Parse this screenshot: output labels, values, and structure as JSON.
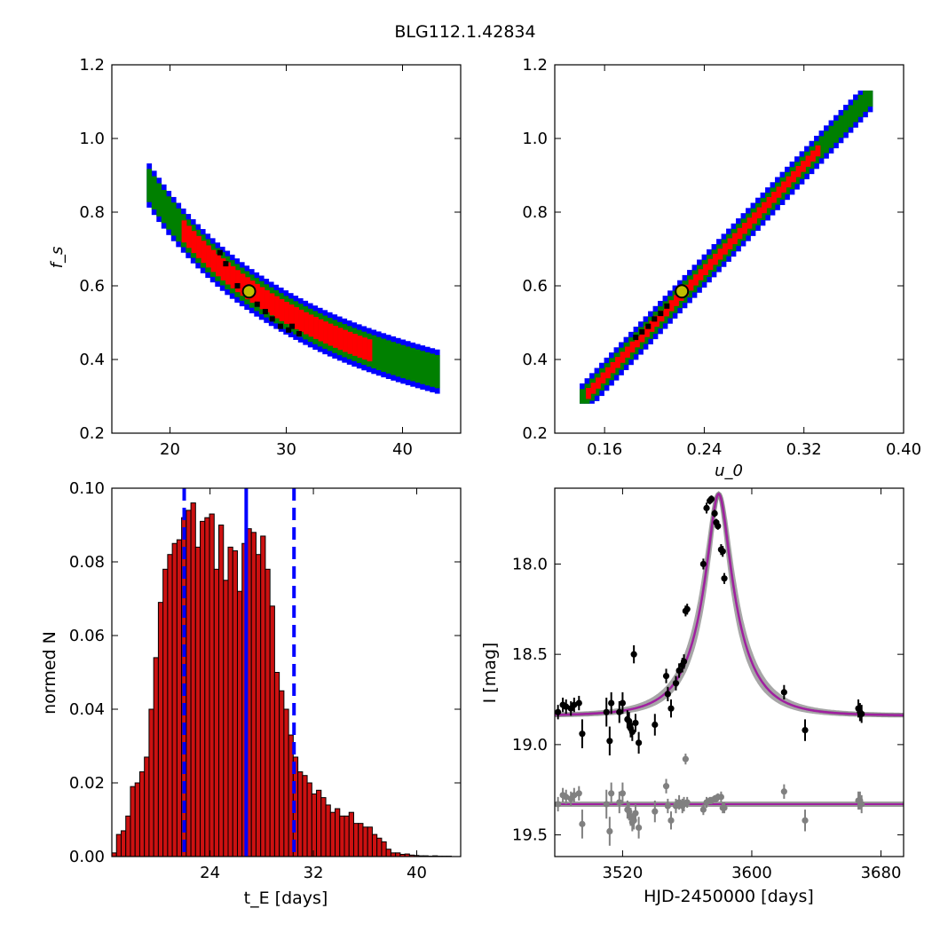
{
  "figure": {
    "title": "BLG112.1.42834"
  },
  "colors": {
    "sigma1": "#ff0000",
    "sigma2": "#008000",
    "sigma3": "#0000ff",
    "best_grid": "#000000",
    "marker_fill": "#bfbf00",
    "model": "#a020a0",
    "model_shade": "#808080",
    "hist_bar": "#cc1111",
    "median_line": "#0000ff",
    "data_main": "#000000",
    "data_resid": "#808080"
  },
  "chart_data": [
    {
      "id": "tE_fs",
      "type": "heatmap",
      "xlabel": "",
      "ylabel": "f_s",
      "xlim": [
        15,
        45
      ],
      "ylim": [
        0.2,
        1.2
      ],
      "xticks": [
        "20",
        "30",
        "40"
      ],
      "yticks": [
        "0.2",
        "0.4",
        "0.6",
        "0.8",
        "1.0",
        "1.2"
      ],
      "relation": {
        "form": "fs = 15.7 / tE",
        "x_range": [
          18,
          43
        ]
      },
      "bands": {
        "sigma1_halfwidth_fs": 0.03,
        "sigma1_x_range": [
          21,
          37
        ],
        "sigma2_halfwidth_fs": 0.045,
        "sigma3_halfwidth_fs": 0.06
      },
      "best_cells": [
        [
          24.3,
          0.69
        ],
        [
          24.8,
          0.66
        ],
        [
          25.8,
          0.6
        ],
        [
          27.5,
          0.55
        ],
        [
          28.2,
          0.53
        ],
        [
          28.8,
          0.51
        ],
        [
          29.5,
          0.49
        ],
        [
          30.2,
          0.48
        ],
        [
          30.5,
          0.49
        ],
        [
          31.1,
          0.47
        ]
      ],
      "best_fit": {
        "x": 26.8,
        "y": 0.585
      }
    },
    {
      "id": "u0_fs",
      "type": "heatmap",
      "xlabel": "u_0",
      "ylabel": "",
      "xlim": [
        0.12,
        0.4
      ],
      "ylim": [
        0.2,
        1.2
      ],
      "xticks": [
        "0.16",
        "0.24",
        "0.32",
        "0.40"
      ],
      "yticks": [
        "0.2",
        "0.4",
        "0.6",
        "0.8",
        "1.0",
        "1.2"
      ],
      "relation": {
        "form": "linear",
        "points": [
          [
            0.14,
            0.29
          ],
          [
            0.375,
            1.13
          ]
        ]
      },
      "bands": {
        "sigma1_halfwidth_fs": 0.015,
        "sigma2_halfwidth_fs": 0.03,
        "sigma3_halfwidth_fs": 0.045
      },
      "best_cells": [
        [
          0.185,
          0.46
        ],
        [
          0.19,
          0.475
        ],
        [
          0.195,
          0.49
        ],
        [
          0.2,
          0.51
        ],
        [
          0.205,
          0.525
        ],
        [
          0.21,
          0.545
        ]
      ],
      "best_fit": {
        "x": 0.222,
        "y": 0.585
      }
    },
    {
      "id": "tE_hist",
      "type": "bar",
      "xlabel": "t_E [days]",
      "ylabel": "normed N",
      "xlim": [
        16.4,
        43.4
      ],
      "ylim": [
        0.0,
        0.1
      ],
      "xticks": [
        "24",
        "32",
        "40"
      ],
      "yticks": [
        "0.00",
        "0.02",
        "0.04",
        "0.06",
        "0.08",
        "0.10"
      ],
      "bin_start": 16.4,
      "bin_width": 0.36,
      "values": [
        0.001,
        0.006,
        0.007,
        0.011,
        0.019,
        0.02,
        0.023,
        0.027,
        0.04,
        0.054,
        0.069,
        0.078,
        0.082,
        0.085,
        0.086,
        0.092,
        0.094,
        0.096,
        0.084,
        0.091,
        0.092,
        0.093,
        0.078,
        0.09,
        0.075,
        0.084,
        0.083,
        0.072,
        0.085,
        0.089,
        0.088,
        0.082,
        0.087,
        0.078,
        0.068,
        0.05,
        0.045,
        0.04,
        0.033,
        0.027,
        0.023,
        0.022,
        0.02,
        0.017,
        0.018,
        0.016,
        0.014,
        0.012,
        0.013,
        0.011,
        0.011,
        0.012,
        0.009,
        0.009,
        0.008,
        0.008,
        0.006,
        0.005,
        0.004,
        0.002,
        0.001,
        0.001,
        0.0006,
        0.0007,
        0.0004,
        0.0003,
        0.0002,
        0.0002,
        0.0001,
        0.0002,
        0.0001,
        0.0001,
        0.0001,
        0.0
      ],
      "median": 26.8,
      "interval": [
        22.0,
        30.5
      ]
    },
    {
      "id": "lightcurve",
      "type": "scatter",
      "xlabel": "HJD-2450000 [days]",
      "ylabel": "I [mag]",
      "xlim": [
        3478,
        3694
      ],
      "ylim": [
        19.62,
        17.58
      ],
      "xticks": [
        "3520",
        "3600",
        "3680"
      ],
      "yticks": [
        "18.0",
        "18.5",
        "19.0",
        "19.5"
      ],
      "model": {
        "t0": 3579.5,
        "tE": 26.8,
        "u0": 0.222,
        "fs": 0.585,
        "base_mag": 18.84
      },
      "resid_baseline": 19.33,
      "series": [
        {
          "points": [
            [
              3480,
              18.82,
              0.04
            ],
            [
              3483,
              18.78,
              0.04
            ],
            [
              3485,
              18.79,
              0.04
            ],
            [
              3488,
              18.8,
              0.04
            ],
            [
              3490,
              18.78,
              0.04
            ],
            [
              3493,
              18.77,
              0.04
            ],
            [
              3495,
              18.94,
              0.08
            ],
            [
              3510,
              18.82,
              0.08
            ],
            [
              3512,
              18.98,
              0.08
            ],
            [
              3513,
              18.77,
              0.06
            ],
            [
              3518,
              18.82,
              0.06
            ],
            [
              3520,
              18.77,
              0.06
            ],
            [
              3523,
              18.86,
              0.05
            ],
            [
              3524,
              18.87,
              0.05
            ],
            [
              3525,
              18.91,
              0.05
            ],
            [
              3526,
              18.93,
              0.05
            ],
            [
              3527,
              18.5,
              0.05
            ],
            [
              3528,
              18.88,
              0.05
            ],
            [
              3530,
              18.99,
              0.06
            ],
            [
              3540,
              18.89,
              0.06
            ],
            [
              3547,
              18.62,
              0.04
            ],
            [
              3548,
              18.72,
              0.04
            ],
            [
              3550,
              18.8,
              0.05
            ],
            [
              3553,
              18.66,
              0.04
            ],
            [
              3555,
              18.59,
              0.04
            ],
            [
              3557,
              18.56,
              0.04
            ],
            [
              3558,
              18.54,
              0.04
            ],
            [
              3559,
              18.26,
              0.03
            ],
            [
              3560,
              18.25,
              0.03
            ],
            [
              3570,
              18.0,
              0.03
            ],
            [
              3572,
              17.69,
              0.03
            ],
            [
              3574,
              17.65,
              0.02
            ],
            [
              3575,
              17.64,
              0.02
            ],
            [
              3577,
              17.72,
              0.02
            ],
            [
              3578,
              17.77,
              0.02
            ],
            [
              3579,
              17.79,
              0.02
            ],
            [
              3581,
              17.92,
              0.03
            ],
            [
              3582,
              17.93,
              0.03
            ],
            [
              3583,
              18.08,
              0.03
            ],
            [
              3620,
              18.71,
              0.04
            ],
            [
              3633,
              18.92,
              0.06
            ],
            [
              3666,
              18.8,
              0.05
            ],
            [
              3667,
              18.82,
              0.05
            ],
            [
              3668,
              18.83,
              0.05
            ]
          ]
        },
        {
          "points": [
            [
              3480,
              19.33,
              0.04
            ],
            [
              3483,
              19.28,
              0.04
            ],
            [
              3485,
              19.29,
              0.04
            ],
            [
              3488,
              19.3,
              0.04
            ],
            [
              3490,
              19.28,
              0.04
            ],
            [
              3493,
              19.27,
              0.04
            ],
            [
              3495,
              19.44,
              0.08
            ],
            [
              3510,
              19.33,
              0.08
            ],
            [
              3512,
              19.48,
              0.08
            ],
            [
              3513,
              19.27,
              0.06
            ],
            [
              3518,
              19.32,
              0.06
            ],
            [
              3520,
              19.27,
              0.06
            ],
            [
              3523,
              19.36,
              0.05
            ],
            [
              3524,
              19.37,
              0.05
            ],
            [
              3525,
              19.4,
              0.05
            ],
            [
              3526,
              19.43,
              0.05
            ],
            [
              3527,
              19.42,
              0.05
            ],
            [
              3528,
              19.38,
              0.05
            ],
            [
              3530,
              19.46,
              0.06
            ],
            [
              3540,
              19.37,
              0.06
            ],
            [
              3547,
              19.23,
              0.04
            ],
            [
              3548,
              19.34,
              0.04
            ],
            [
              3550,
              19.42,
              0.05
            ],
            [
              3553,
              19.34,
              0.04
            ],
            [
              3555,
              19.32,
              0.04
            ],
            [
              3557,
              19.34,
              0.04
            ],
            [
              3558,
              19.33,
              0.04
            ],
            [
              3559,
              19.08,
              0.03
            ],
            [
              3560,
              19.32,
              0.03
            ],
            [
              3570,
              19.36,
              0.03
            ],
            [
              3572,
              19.32,
              0.03
            ],
            [
              3574,
              19.31,
              0.02
            ],
            [
              3575,
              19.31,
              0.02
            ],
            [
              3577,
              19.3,
              0.02
            ],
            [
              3578,
              19.3,
              0.02
            ],
            [
              3579,
              19.29,
              0.02
            ],
            [
              3581,
              19.29,
              0.03
            ],
            [
              3582,
              19.35,
              0.03
            ],
            [
              3583,
              19.35,
              0.03
            ],
            [
              3620,
              19.26,
              0.04
            ],
            [
              3633,
              19.42,
              0.06
            ],
            [
              3666,
              19.31,
              0.05
            ],
            [
              3667,
              19.31,
              0.05
            ],
            [
              3668,
              19.33,
              0.05
            ]
          ]
        }
      ]
    }
  ]
}
